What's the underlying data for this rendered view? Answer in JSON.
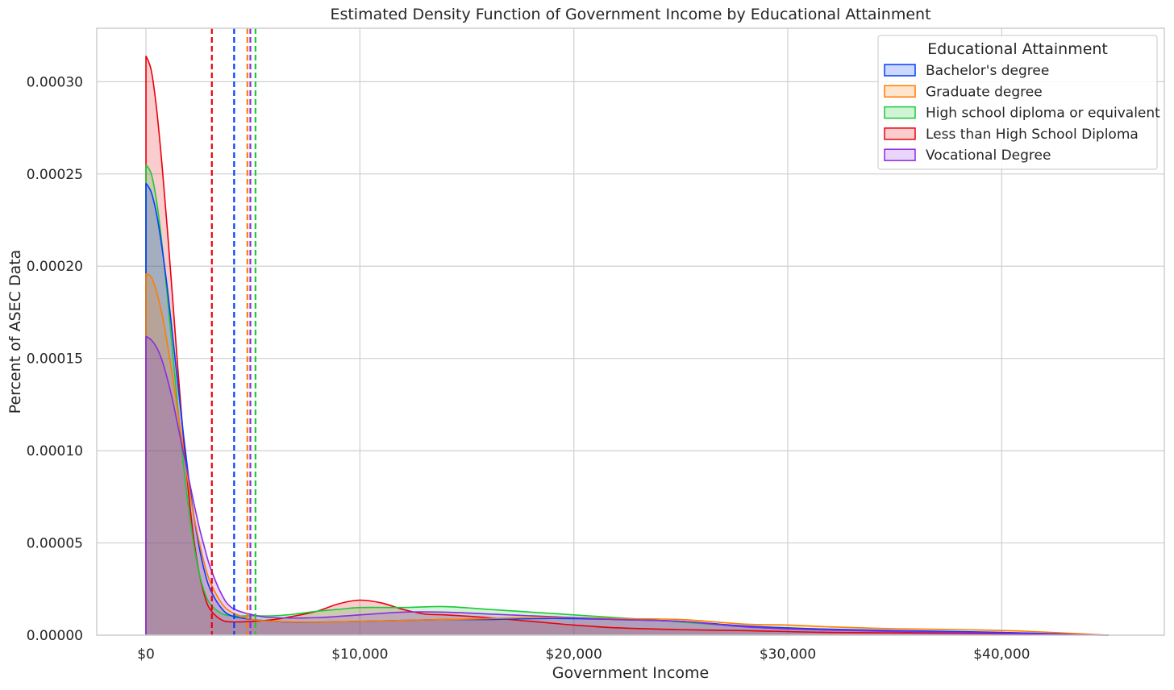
{
  "chart_data": {
    "type": "area",
    "title": "Estimated Density Function of Government Income by Educational Attainment",
    "xlabel": "Government Income",
    "ylabel": "Percent of ASEC Data",
    "xlim": [
      -2300,
      47600
    ],
    "ylim": [
      0,
      0.000329
    ],
    "x_ticks": [
      0,
      10000,
      20000,
      30000,
      40000
    ],
    "x_tick_labels": [
      "$0",
      "$10,000",
      "$20,000",
      "$30,000",
      "$40,000"
    ],
    "y_ticks": [
      0,
      5e-05,
      0.0001,
      0.00015,
      0.0002,
      0.00025,
      0.0003
    ],
    "y_tick_labels": [
      "0.00000",
      "0.00005",
      "0.00010",
      "0.00015",
      "0.00020",
      "0.00025",
      "0.00030"
    ],
    "grid": true,
    "legend": {
      "title": "Educational Attainment",
      "placement": "top-right"
    },
    "series": [
      {
        "name": "Less than High School Diploma",
        "color": "#e8000b",
        "mean": 3080,
        "points": [
          [
            0,
            0.000314
          ],
          [
            250,
            0.000306
          ],
          [
            500,
            0.000285
          ],
          [
            750,
            0.000255
          ],
          [
            1000,
            0.00022
          ],
          [
            1250,
            0.000182
          ],
          [
            1500,
            0.000143
          ],
          [
            1750,
            0.000107
          ],
          [
            2000,
            7.6e-05
          ],
          [
            2250,
            5.1e-05
          ],
          [
            2500,
            3.3e-05
          ],
          [
            2750,
            2.1e-05
          ],
          [
            3000,
            1.4e-05
          ],
          [
            3500,
            8.5e-06
          ],
          [
            4000,
            7.2e-06
          ],
          [
            5000,
            7.5e-06
          ],
          [
            6000,
            8.5e-06
          ],
          [
            7000,
            1.05e-05
          ],
          [
            8000,
            1.3e-05
          ],
          [
            9000,
            1.7e-05
          ],
          [
            10000,
            1.9e-05
          ],
          [
            11000,
            1.75e-05
          ],
          [
            12000,
            1.4e-05
          ],
          [
            13000,
            1.15e-05
          ],
          [
            14000,
            1.1e-05
          ],
          [
            16000,
            9.5e-06
          ],
          [
            18000,
            7.5e-06
          ],
          [
            20000,
            5.5e-06
          ],
          [
            22000,
            4e-06
          ],
          [
            25000,
            3e-06
          ],
          [
            28000,
            2.5e-06
          ],
          [
            32000,
            1.5e-06
          ],
          [
            38000,
            1e-06
          ],
          [
            45000,
            0
          ]
        ]
      },
      {
        "name": "High school diploma or equivalent",
        "color": "#1ac938",
        "mean": 5120,
        "points": [
          [
            0,
            0.000255
          ],
          [
            250,
            0.00025
          ],
          [
            500,
            0.000235
          ],
          [
            750,
            0.000212
          ],
          [
            1000,
            0.000184
          ],
          [
            1250,
            0.000153
          ],
          [
            1500,
            0.000122
          ],
          [
            1750,
            9.3e-05
          ],
          [
            2000,
            6.8e-05
          ],
          [
            2250,
            4.8e-05
          ],
          [
            2500,
            3.3e-05
          ],
          [
            2750,
            2.3e-05
          ],
          [
            3000,
            1.7e-05
          ],
          [
            3500,
            1.2e-05
          ],
          [
            4000,
            1.05e-05
          ],
          [
            5000,
            1.05e-05
          ],
          [
            6000,
            1.05e-05
          ],
          [
            7000,
            1.15e-05
          ],
          [
            8000,
            1.3e-05
          ],
          [
            9000,
            1.4e-05
          ],
          [
            10000,
            1.5e-05
          ],
          [
            12000,
            1.5e-05
          ],
          [
            14000,
            1.55e-05
          ],
          [
            16000,
            1.4e-05
          ],
          [
            18000,
            1.25e-05
          ],
          [
            20000,
            1.1e-05
          ],
          [
            22000,
            9.5e-06
          ],
          [
            24000,
            8e-06
          ],
          [
            27000,
            5.5e-06
          ],
          [
            30000,
            4e-06
          ],
          [
            34000,
            2.5e-06
          ],
          [
            40000,
            1.2e-06
          ],
          [
            45000,
            0
          ]
        ]
      },
      {
        "name": "Bachelor's degree",
        "color": "#023eff",
        "mean": 4120,
        "points": [
          [
            0,
            0.000245
          ],
          [
            250,
            0.00024
          ],
          [
            500,
            0.000228
          ],
          [
            750,
            0.00021
          ],
          [
            1000,
            0.000188
          ],
          [
            1250,
            0.000162
          ],
          [
            1500,
            0.000135
          ],
          [
            1750,
            0.000109
          ],
          [
            2000,
            8.5e-05
          ],
          [
            2250,
            6.4e-05
          ],
          [
            2500,
            4.7e-05
          ],
          [
            2750,
            3.4e-05
          ],
          [
            3000,
            2.5e-05
          ],
          [
            3500,
            1.5e-05
          ],
          [
            4000,
            1.05e-05
          ],
          [
            5000,
            8.5e-06
          ],
          [
            6000,
            7.5e-06
          ],
          [
            7000,
            7e-06
          ],
          [
            8000,
            7e-06
          ],
          [
            10000,
            7.5e-06
          ],
          [
            12000,
            8e-06
          ],
          [
            14000,
            8.5e-06
          ],
          [
            16000,
            8.5e-06
          ],
          [
            18000,
            9e-06
          ],
          [
            20000,
            9e-06
          ],
          [
            22000,
            8.5e-06
          ],
          [
            25000,
            7.5e-06
          ],
          [
            28000,
            5e-06
          ],
          [
            31000,
            3.5e-06
          ],
          [
            35000,
            2.5e-06
          ],
          [
            40000,
            1.5e-06
          ],
          [
            45000,
            0
          ]
        ]
      },
      {
        "name": "Graduate degree",
        "color": "#ff7c00",
        "mean": 4740,
        "points": [
          [
            0,
            0.000196
          ],
          [
            250,
            0.000194
          ],
          [
            500,
            0.000186
          ],
          [
            750,
            0.000174
          ],
          [
            1000,
            0.000158
          ],
          [
            1250,
            0.00014
          ],
          [
            1500,
            0.00012
          ],
          [
            1750,
            0.0001
          ],
          [
            2000,
            8.1e-05
          ],
          [
            2250,
            6.4e-05
          ],
          [
            2500,
            5e-05
          ],
          [
            2750,
            3.8e-05
          ],
          [
            3000,
            2.9e-05
          ],
          [
            3500,
            1.8e-05
          ],
          [
            4000,
            1.25e-05
          ],
          [
            5000,
            8.5e-06
          ],
          [
            6000,
            7.5e-06
          ],
          [
            8000,
            7e-06
          ],
          [
            10000,
            7.5e-06
          ],
          [
            12000,
            8e-06
          ],
          [
            14000,
            8.5e-06
          ],
          [
            16000,
            9e-06
          ],
          [
            18000,
            9.5e-06
          ],
          [
            20000,
            9.5e-06
          ],
          [
            22000,
            9e-06
          ],
          [
            25000,
            8.5e-06
          ],
          [
            28000,
            6e-06
          ],
          [
            30000,
            5.5e-06
          ],
          [
            32000,
            4.5e-06
          ],
          [
            35000,
            3.5e-06
          ],
          [
            38000,
            3e-06
          ],
          [
            41000,
            2.2e-06
          ],
          [
            45000,
            0
          ]
        ]
      },
      {
        "name": "Vocational Degree",
        "color": "#8b2be2",
        "mean": 4880,
        "points": [
          [
            0,
            0.000162
          ],
          [
            250,
            0.00016
          ],
          [
            500,
            0.000156
          ],
          [
            750,
            0.000149
          ],
          [
            1000,
            0.000139
          ],
          [
            1250,
            0.000127
          ],
          [
            1500,
            0.000113
          ],
          [
            1750,
            9.9e-05
          ],
          [
            2000,
            8.5e-05
          ],
          [
            2250,
            7.1e-05
          ],
          [
            2500,
            5.8e-05
          ],
          [
            2750,
            4.7e-05
          ],
          [
            3000,
            3.7e-05
          ],
          [
            3500,
            2.3e-05
          ],
          [
            4000,
            1.5e-05
          ],
          [
            5000,
            1.1e-05
          ],
          [
            6000,
            9.5e-06
          ],
          [
            8000,
            9.5e-06
          ],
          [
            10000,
            1.1e-05
          ],
          [
            12000,
            1.25e-05
          ],
          [
            14000,
            1.25e-05
          ],
          [
            16000,
            1.15e-05
          ],
          [
            18000,
            1.05e-05
          ],
          [
            20000,
            9.5e-06
          ],
          [
            22000,
            8.5e-06
          ],
          [
            25000,
            7.5e-06
          ],
          [
            28000,
            4.5e-06
          ],
          [
            31000,
            3e-06
          ],
          [
            35000,
            2e-06
          ],
          [
            40000,
            1e-06
          ],
          [
            45000,
            0
          ]
        ]
      }
    ]
  }
}
